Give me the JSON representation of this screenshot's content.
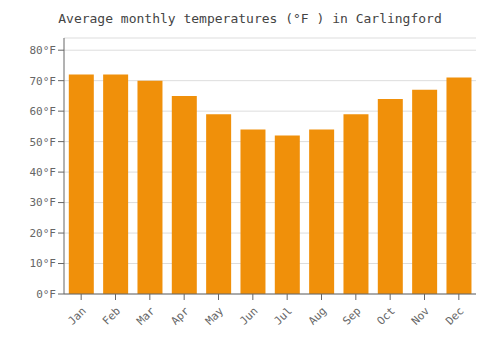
{
  "chart_data": {
    "type": "bar",
    "title": "Average monthly temperatures (°F ) in Carlingford",
    "categories": [
      "Jan",
      "Feb",
      "Mar",
      "Apr",
      "May",
      "Jun",
      "Jul",
      "Aug",
      "Sep",
      "Oct",
      "Nov",
      "Dec"
    ],
    "values": [
      72,
      72,
      70,
      65,
      59,
      54,
      52,
      54,
      59,
      64,
      67,
      71
    ],
    "color": "#F0900A",
    "ylim": [
      0,
      84
    ],
    "yticks": [
      {
        "value": 0,
        "label": "0°F"
      },
      {
        "value": 10,
        "label": "10°F"
      },
      {
        "value": 20,
        "label": "20°F"
      },
      {
        "value": 30,
        "label": "30°F"
      },
      {
        "value": 40,
        "label": "40°F"
      },
      {
        "value": 50,
        "label": "50°F"
      },
      {
        "value": 60,
        "label": "60°F"
      },
      {
        "value": 70,
        "label": "70°F"
      },
      {
        "value": 80,
        "label": "80°F"
      }
    ],
    "grid": true
  }
}
